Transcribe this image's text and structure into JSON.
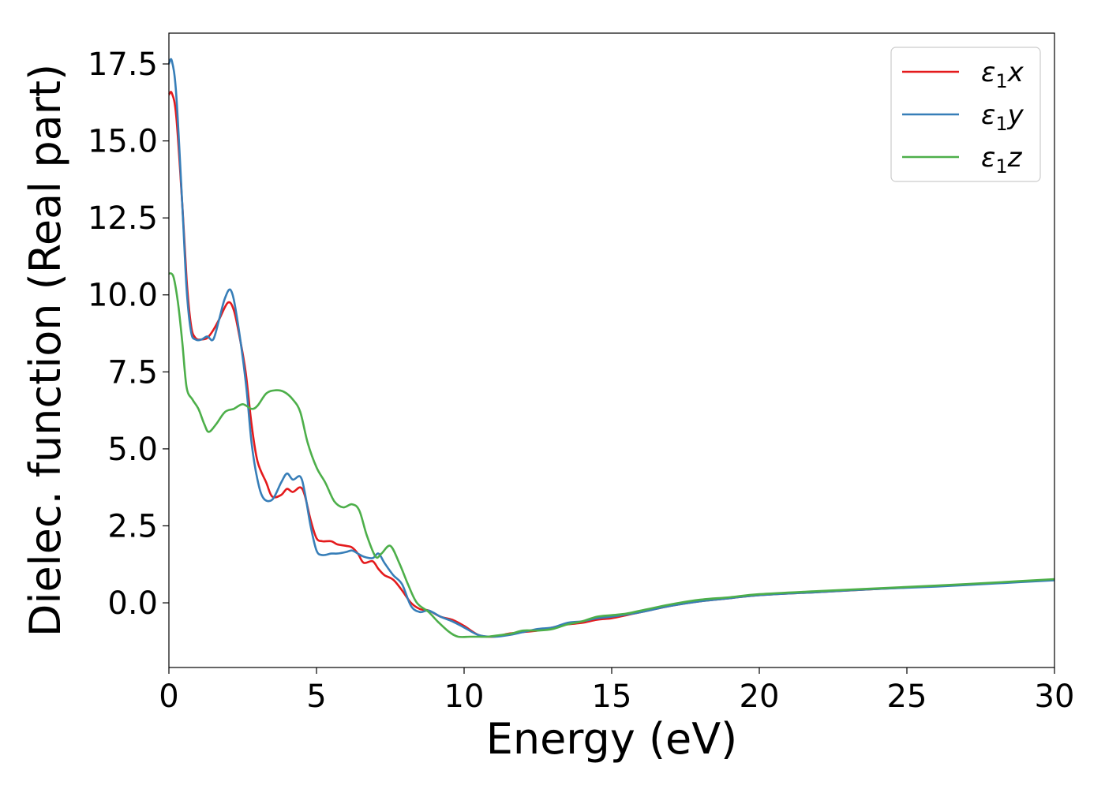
{
  "chart_data": {
    "type": "line",
    "title": "",
    "xlabel": "Energy (eV)",
    "ylabel": "Dielec. function (Real part)",
    "xlim": [
      0,
      30
    ],
    "ylim": [
      -2.1,
      18.5
    ],
    "xticks": [
      0,
      5,
      10,
      15,
      20,
      25,
      30
    ],
    "yticks": [
      0.0,
      2.5,
      5.0,
      7.5,
      10.0,
      12.5,
      15.0,
      17.5
    ],
    "grid": false,
    "legend_position": "top-right",
    "series": [
      {
        "name": "ε₁x",
        "legend_base": "ε",
        "legend_sub": "1",
        "legend_tail": "x",
        "color": "#e41a1c",
        "x": [
          0,
          0.1,
          0.25,
          0.45,
          0.6,
          0.75,
          0.9,
          1.1,
          1.3,
          1.5,
          1.7,
          2.0,
          2.2,
          2.4,
          2.6,
          2.8,
          3.0,
          3.3,
          3.5,
          3.8,
          4.0,
          4.2,
          4.45,
          4.6,
          4.8,
          5.0,
          5.2,
          5.5,
          5.7,
          6.0,
          6.2,
          6.4,
          6.6,
          6.9,
          7.1,
          7.3,
          7.6,
          7.9,
          8.2,
          8.5,
          8.8,
          9.2,
          9.6,
          10.0,
          10.5,
          11.0,
          11.5,
          12.0,
          12.5,
          13.0,
          13.5,
          14.0,
          14.5,
          15.0,
          15.5,
          16.0,
          17.0,
          18.0,
          19.0,
          20.0,
          22.0,
          24.0,
          26.0,
          28.0,
          30.0
        ],
        "y": [
          16.5,
          16.55,
          15.8,
          13.0,
          10.5,
          9.0,
          8.6,
          8.55,
          8.6,
          8.85,
          9.2,
          9.75,
          9.5,
          8.6,
          7.5,
          5.8,
          4.6,
          3.9,
          3.45,
          3.5,
          3.7,
          3.6,
          3.75,
          3.5,
          2.7,
          2.1,
          2.0,
          2.0,
          1.9,
          1.85,
          1.8,
          1.6,
          1.3,
          1.35,
          1.1,
          0.9,
          0.75,
          0.4,
          0.0,
          -0.2,
          -0.25,
          -0.45,
          -0.55,
          -0.75,
          -1.05,
          -1.1,
          -1.0,
          -0.95,
          -0.9,
          -0.8,
          -0.7,
          -0.65,
          -0.55,
          -0.5,
          -0.4,
          -0.3,
          -0.1,
          0.05,
          0.15,
          0.25,
          0.35,
          0.45,
          0.55,
          0.65,
          0.75
        ]
      },
      {
        "name": "ε₁y",
        "legend_base": "ε",
        "legend_sub": "1",
        "legend_tail": "y",
        "color": "#377eb8",
        "x": [
          0,
          0.1,
          0.25,
          0.45,
          0.6,
          0.75,
          0.9,
          1.1,
          1.3,
          1.5,
          1.7,
          1.9,
          2.1,
          2.3,
          2.6,
          2.8,
          3.0,
          3.2,
          3.5,
          3.8,
          4.0,
          4.2,
          4.45,
          4.6,
          4.8,
          5.0,
          5.2,
          5.5,
          5.7,
          6.0,
          6.2,
          6.4,
          6.6,
          6.9,
          7.1,
          7.3,
          7.6,
          7.9,
          8.2,
          8.5,
          8.8,
          9.2,
          9.6,
          10.0,
          10.5,
          11.0,
          11.5,
          12.0,
          12.5,
          13.0,
          13.5,
          14.0,
          14.5,
          15.0,
          15.5,
          16.0,
          17.0,
          18.0,
          19.0,
          20.0,
          22.0,
          24.0,
          26.0,
          28.0,
          30.0
        ],
        "y": [
          17.5,
          17.6,
          16.5,
          13.0,
          10.2,
          8.8,
          8.55,
          8.55,
          8.65,
          8.55,
          9.2,
          9.9,
          10.15,
          9.3,
          7.2,
          5.2,
          4.0,
          3.4,
          3.35,
          3.9,
          4.2,
          4.0,
          4.1,
          3.6,
          2.5,
          1.7,
          1.55,
          1.6,
          1.6,
          1.65,
          1.7,
          1.6,
          1.5,
          1.45,
          1.6,
          1.3,
          0.9,
          0.6,
          -0.1,
          -0.3,
          -0.25,
          -0.45,
          -0.6,
          -0.8,
          -1.05,
          -1.1,
          -1.05,
          -0.95,
          -0.85,
          -0.8,
          -0.65,
          -0.6,
          -0.5,
          -0.45,
          -0.38,
          -0.3,
          -0.1,
          0.05,
          0.15,
          0.25,
          0.35,
          0.45,
          0.53,
          0.63,
          0.73
        ]
      },
      {
        "name": "ε₁z",
        "legend_base": "ε",
        "legend_sub": "1",
        "legend_tail": "z",
        "color": "#4daf4a",
        "x": [
          0,
          0.15,
          0.3,
          0.45,
          0.6,
          0.8,
          1.0,
          1.2,
          1.35,
          1.6,
          1.9,
          2.2,
          2.5,
          2.8,
          3.0,
          3.3,
          3.6,
          3.9,
          4.2,
          4.45,
          4.7,
          5.0,
          5.3,
          5.6,
          5.9,
          6.2,
          6.45,
          6.7,
          7.0,
          7.2,
          7.5,
          7.8,
          8.1,
          8.4,
          8.8,
          9.1,
          9.5,
          9.8,
          10.2,
          10.5,
          10.8,
          11.2,
          11.6,
          12.0,
          12.5,
          13.0,
          13.5,
          14.0,
          14.5,
          15.0,
          15.5,
          16.0,
          17.0,
          18.0,
          19.0,
          20.0,
          22.0,
          24.0,
          26.0,
          28.0,
          30.0
        ],
        "y": [
          10.7,
          10.6,
          9.8,
          8.5,
          7.0,
          6.6,
          6.3,
          5.8,
          5.55,
          5.8,
          6.2,
          6.3,
          6.45,
          6.3,
          6.4,
          6.8,
          6.9,
          6.85,
          6.6,
          6.2,
          5.2,
          4.4,
          3.9,
          3.3,
          3.1,
          3.2,
          3.0,
          2.2,
          1.5,
          1.6,
          1.85,
          1.3,
          0.6,
          0.0,
          -0.3,
          -0.6,
          -0.95,
          -1.1,
          -1.1,
          -1.1,
          -1.1,
          -1.05,
          -1.0,
          -0.9,
          -0.9,
          -0.85,
          -0.7,
          -0.6,
          -0.45,
          -0.4,
          -0.35,
          -0.25,
          -0.05,
          0.1,
          0.18,
          0.28,
          0.38,
          0.47,
          0.56,
          0.66,
          0.77
        ]
      }
    ]
  }
}
